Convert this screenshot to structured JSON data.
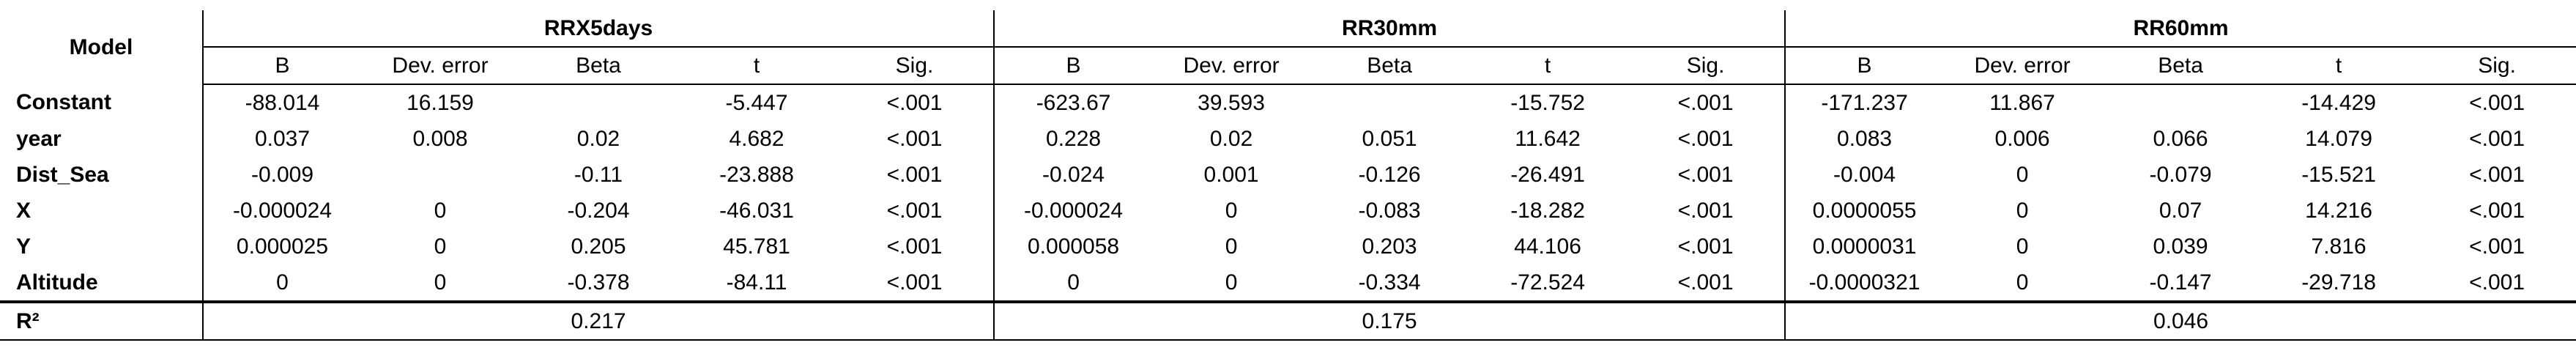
{
  "table": {
    "model_header": "Model",
    "groups": [
      "RRX5days",
      "RR30mm",
      "RR60mm"
    ],
    "columns": [
      "B",
      "Dev. error",
      "Beta",
      "t",
      "Sig."
    ],
    "rows": [
      {
        "label": "Constant",
        "cells": [
          [
            "-88.014",
            "16.159",
            null,
            "-5.447",
            "<.001"
          ],
          [
            "-623.67",
            "39.593",
            null,
            "-15.752",
            "<.001"
          ],
          [
            "-171.237",
            "11.867",
            null,
            "-14.429",
            "<.001"
          ]
        ]
      },
      {
        "label": "year",
        "cells": [
          [
            "0.037",
            "0.008",
            "0.02",
            "4.682",
            "<.001"
          ],
          [
            "0.228",
            "0.02",
            "0.051",
            "11.642",
            "<.001"
          ],
          [
            "0.083",
            "0.006",
            "0.066",
            "14.079",
            "<.001"
          ]
        ]
      },
      {
        "label": "Dist_Sea",
        "cells": [
          [
            "-0.009",
            null,
            "-0.11",
            "-23.888",
            "<.001"
          ],
          [
            "-0.024",
            "0.001",
            "-0.126",
            "-26.491",
            "<.001"
          ],
          [
            "-0.004",
            "0",
            "-0.079",
            "-15.521",
            "<.001"
          ]
        ]
      },
      {
        "label": "X",
        "cells": [
          [
            "-0.000024",
            "0",
            "-0.204",
            "-46.031",
            "<.001"
          ],
          [
            "-0.000024",
            "0",
            "-0.083",
            "-18.282",
            "<.001"
          ],
          [
            "0.0000055",
            "0",
            "0.07",
            "14.216",
            "<.001"
          ]
        ]
      },
      {
        "label": "Y",
        "cells": [
          [
            "0.000025",
            "0",
            "0.205",
            "45.781",
            "<.001"
          ],
          [
            "0.000058",
            "0",
            "0.203",
            "44.106",
            "<.001"
          ],
          [
            "0.0000031",
            "0",
            "0.039",
            "7.816",
            "<.001"
          ]
        ]
      },
      {
        "label": "Altitude",
        "cells": [
          [
            "0",
            "0",
            "-0.378",
            "-84.11",
            "<.001"
          ],
          [
            "0",
            "0",
            "-0.334",
            "-72.524",
            "<.001"
          ],
          [
            "-0.0000321",
            "0",
            "-0.147",
            "-29.718",
            "<.001"
          ]
        ]
      }
    ],
    "r2": {
      "label": "R²",
      "values": [
        "0.217",
        "0.175",
        "0.046"
      ]
    }
  }
}
